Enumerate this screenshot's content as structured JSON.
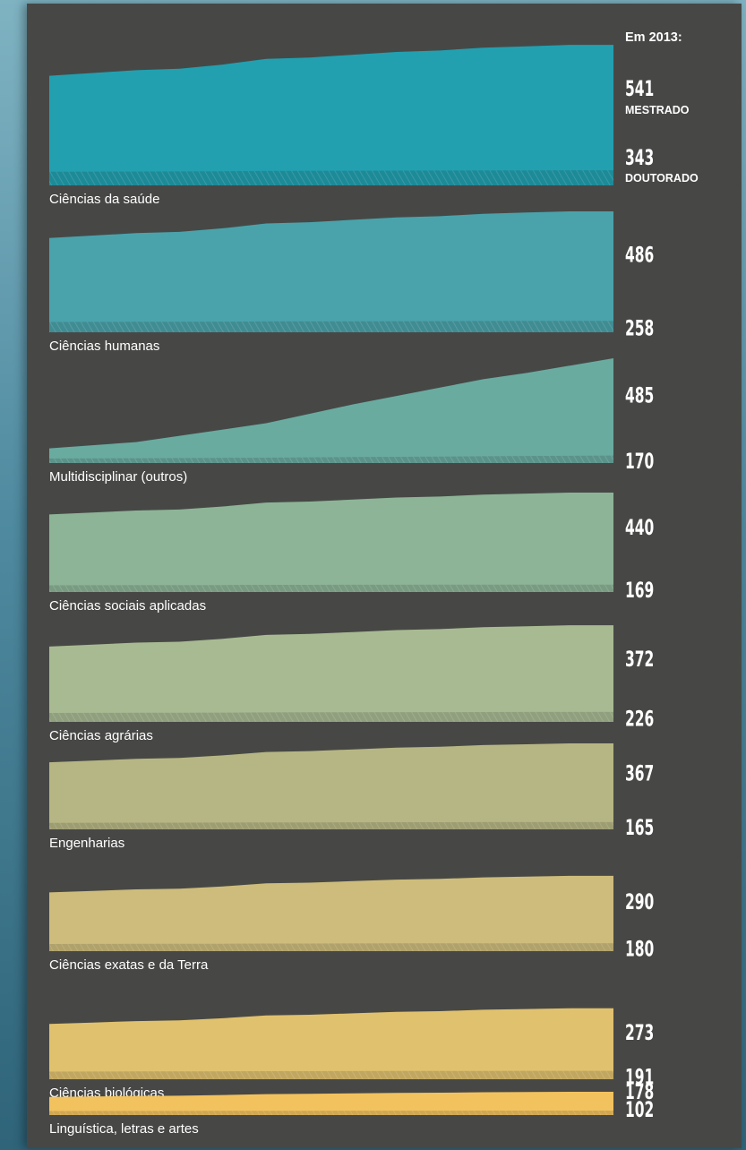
{
  "header": "Em 2013:",
  "chart_data": {
    "type": "area",
    "x_label": "",
    "header": "Em 2013:",
    "level_labels": [
      "MESTRADO",
      "DOUTORADO"
    ],
    "series_order": [
      "mestrado",
      "doutorado"
    ],
    "charts": [
      {
        "label": "Ciências da saúde",
        "mestrado": 541,
        "doutorado": 343,
        "show_level_labels": true
      },
      {
        "label": "Ciências humanas",
        "mestrado": 486,
        "doutorado": 258
      },
      {
        "label": "Multidisciplinar (outros)",
        "mestrado": 485,
        "doutorado": 170
      },
      {
        "label": "Ciências sociais aplicadas",
        "mestrado": 440,
        "doutorado": 169
      },
      {
        "label": "Ciências agrárias",
        "mestrado": 372,
        "doutorado": 226
      },
      {
        "label": "Engenharias",
        "mestrado": 367,
        "doutorado": 165
      },
      {
        "label": "Ciências exatas e da Terra",
        "mestrado": 290,
        "doutorado": 180
      },
      {
        "label": "Ciências biológicas",
        "mestrado": 273,
        "doutorado": 191
      },
      {
        "label": "Linguística, letras e artes",
        "mestrado": 178,
        "doutorado": 102
      }
    ],
    "colors": [
      "#22a0b0",
      "#4aa3ab",
      "#6aaba0",
      "#8db497",
      "#a8ba92",
      "#b6b684",
      "#cdbc7b",
      "#e0c16e",
      "#f2c25f"
    ],
    "grid": false,
    "legend": "none"
  }
}
